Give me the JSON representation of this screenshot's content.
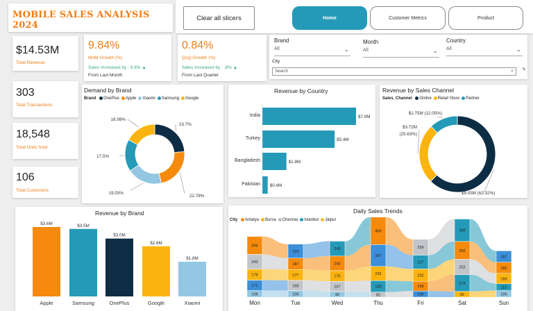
{
  "title": "MOBILE SALES ANALYSIS 2024",
  "nav": {
    "clear_label": "Clear all slicers",
    "home_label": "Home",
    "customer_label": "Customer Metrics",
    "product_label": "Product"
  },
  "kpis": {
    "revenue": {
      "value": "$14.53M",
      "label": "Total Revenue"
    },
    "transactions": {
      "value": "303",
      "label": "Total Transactions"
    },
    "units": {
      "value": "18,548",
      "label": "Total Units Sold"
    },
    "customers": {
      "value": "106",
      "label": "Total Customers"
    },
    "mom": {
      "value": "9.84%",
      "label": "MoM Growth (%)",
      "trend": "Sales Increased by : 9.8% ▲",
      "from": "From Last Month"
    },
    "qoq": {
      "value": "0.84%",
      "label": "QoQ Growth (%)",
      "trend": "Sales Increased by : .8% ▲",
      "from": "From Last Quarter"
    }
  },
  "filters": {
    "brand": {
      "label": "Brand",
      "value": "All"
    },
    "month": {
      "label": "Month",
      "value": "All"
    },
    "country": {
      "label": "Country",
      "value": "All"
    },
    "city": {
      "label": "City",
      "placeholder": "Search"
    }
  },
  "colors": {
    "accent": "#f07d12",
    "teal": "#249ab8",
    "navy": "#0d2d45",
    "orange": "#f58a0c",
    "lightblue": "#94c7e2",
    "yellow": "#fbb40f",
    "green": "#3fa87c"
  },
  "chart_data": [
    {
      "type": "pie",
      "title": "Demand by Brand",
      "legend_title": "Brand",
      "categories": [
        "OnePlus",
        "Apple",
        "Xiaomi",
        "Samsung",
        "Google"
      ],
      "values": [
        23.7,
        22.78,
        19.03,
        17.5,
        16.99
      ],
      "labels": [
        "23.7%",
        "22.78%",
        "19.03%",
        "17.5%",
        "16.99%"
      ],
      "colors": [
        "#0d2d45",
        "#f58a0c",
        "#94c7e2",
        "#249ab8",
        "#fbb40f"
      ]
    },
    {
      "type": "bar",
      "title": "Revenue by Country",
      "categories": [
        "India",
        "Turkey",
        "Bangladesh",
        "Pakistan"
      ],
      "values": [
        7.0,
        5.4,
        1.8,
        0.4
      ],
      "labels": [
        "$7.0M",
        "$5.4M",
        "$1.8M",
        "$0.4M"
      ],
      "orientation": "horizontal"
    },
    {
      "type": "pie",
      "title": "Revenue by Sales Channel",
      "legend_title": "Sales_Channel",
      "categories": [
        "Online",
        "Retail Store",
        "Partner"
      ],
      "values": [
        62.32,
        25.63,
        12.05
      ],
      "labels": [
        "$9.05M (62.32%)",
        "$3.72M (25.63%)",
        "$1.75M (12.05%)"
      ],
      "colors": [
        "#0d2d45",
        "#fbb40f",
        "#249ab8"
      ]
    },
    {
      "type": "bar",
      "title": "Revenue by Brand",
      "categories": [
        "Apple",
        "Samsung",
        "OnePlus",
        "Google",
        "Xiaomi"
      ],
      "values": [
        3.6,
        3.5,
        3.0,
        2.6,
        1.8
      ],
      "labels": [
        "$3.6M",
        "$3.5M",
        "$3.0M",
        "$2.6M",
        "$1.8M"
      ],
      "colors": [
        "#f58a0c",
        "#249ab8",
        "#0d2d45",
        "#fbb40f",
        "#94c7e2"
      ]
    },
    {
      "type": "area",
      "title": "Daily Sales Trends",
      "legend_title": "City",
      "categories": [
        "Mon",
        "Tue",
        "Wed",
        "Thu",
        "Fri",
        "Sat",
        "Sun"
      ],
      "series": [
        {
          "name": "Antalya",
          "color": "#f58a0c"
        },
        {
          "name": "Bursa",
          "color": "#fbb40f"
        },
        {
          "name": "Chennai",
          "color": "#b7bcc1"
        },
        {
          "name": "Istanbul",
          "color": "#249ab8"
        },
        {
          "name": "Jaipur",
          "color": "#f5bf2a"
        }
      ],
      "stacks": [
        [
          {
            "v": 294,
            "c": "#f58a0c"
          },
          {
            "v": 243,
            "c": "#c2c6ca"
          },
          {
            "v": 179,
            "c": "#fbb40f"
          },
          {
            "v": 171,
            "c": "#3c8fd8"
          },
          {
            "v": 106,
            "c": "#94c7e2"
          }
        ],
        [
          {
            "v": 229,
            "c": "#3c8fd8"
          },
          {
            "v": 187,
            "c": "#f58a0c"
          },
          {
            "v": 177,
            "c": "#fbb40f"
          },
          {
            "v": 168,
            "c": "#c2c6ca"
          },
          {
            "v": 106,
            "c": "#94c7e2"
          }
        ],
        [
          {
            "v": 243,
            "c": "#249ab8"
          },
          {
            "v": 240,
            "c": "#f58a0c"
          },
          {
            "v": 175,
            "c": "#fbb40f"
          },
          {
            "v": 167,
            "c": "#c2c6ca"
          },
          {
            "v": 90,
            "c": "#94c7e2"
          }
        ],
        [
          {
            "v": 450,
            "c": "#f58a0c"
          },
          {
            "v": 357,
            "c": "#3c8fd8"
          },
          {
            "v": 232,
            "c": "#fbb40f"
          },
          {
            "v": 188,
            "c": "#249ab8"
          },
          {
            "v": 82,
            "c": "#c2c6ca"
          }
        ],
        [
          {
            "v": 259,
            "c": "#c2c6ca"
          },
          {
            "v": 227,
            "c": "#249ab8"
          },
          {
            "v": 202,
            "c": "#fbb40f"
          },
          {
            "v": 158,
            "c": "#f58a0c"
          },
          {
            "v": 100,
            "c": "#3c8fd8"
          }
        ],
        [
          {
            "v": 368,
            "c": "#249ab8"
          },
          {
            "v": 292,
            "c": "#f58a0c"
          },
          {
            "v": 252,
            "c": "#c2c6ca"
          },
          {
            "v": 274,
            "c": "#249ab8"
          },
          {
            "v": 92,
            "c": "#fbb40f"
          }
        ],
        [
          {
            "v": 187,
            "c": "#3c8fd8"
          },
          {
            "v": 182,
            "c": "#f58a0c"
          },
          {
            "v": 169,
            "c": "#fbb40f"
          },
          {
            "v": 113,
            "c": "#249ab8"
          },
          {
            "v": 106,
            "c": "#94c7e2"
          }
        ]
      ]
    }
  ]
}
